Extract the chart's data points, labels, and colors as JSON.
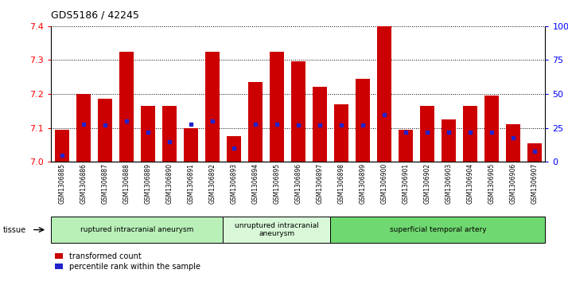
{
  "title": "GDS5186 / 42245",
  "samples": [
    "GSM1306885",
    "GSM1306886",
    "GSM1306887",
    "GSM1306888",
    "GSM1306889",
    "GSM1306890",
    "GSM1306891",
    "GSM1306892",
    "GSM1306893",
    "GSM1306894",
    "GSM1306895",
    "GSM1306896",
    "GSM1306897",
    "GSM1306898",
    "GSM1306899",
    "GSM1306900",
    "GSM1306901",
    "GSM1306902",
    "GSM1306903",
    "GSM1306904",
    "GSM1306905",
    "GSM1306906",
    "GSM1306907"
  ],
  "transformed_count": [
    7.095,
    7.2,
    7.185,
    7.325,
    7.165,
    7.165,
    7.1,
    7.325,
    7.075,
    7.235,
    7.325,
    7.295,
    7.22,
    7.17,
    7.245,
    7.4,
    7.095,
    7.165,
    7.125,
    7.165,
    7.195,
    7.11,
    7.055
  ],
  "percentile_rank": [
    5,
    28,
    27,
    30,
    22,
    15,
    28,
    30,
    10,
    28,
    28,
    27,
    27,
    27,
    27,
    35,
    22,
    22,
    22,
    22,
    22,
    18,
    8
  ],
  "groups": [
    {
      "label": "ruptured intracranial aneurysm",
      "start": 0,
      "end": 8,
      "color": "#b8f0b8"
    },
    {
      "label": "unruptured intracranial\naneurysm",
      "start": 8,
      "end": 13,
      "color": "#d8f8d8"
    },
    {
      "label": "superficial temporal artery",
      "start": 13,
      "end": 23,
      "color": "#70d870"
    }
  ],
  "ylim": [
    7.0,
    7.4
  ],
  "yticks": [
    7.0,
    7.1,
    7.2,
    7.3,
    7.4
  ],
  "right_yticks": [
    0,
    25,
    50,
    75,
    100
  ],
  "bar_color": "#cc0000",
  "dot_color": "#2222cc",
  "title_fontsize": 9
}
